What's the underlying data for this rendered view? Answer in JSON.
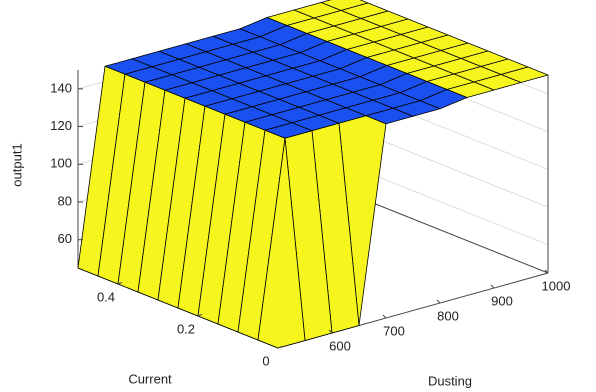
{
  "chart_data": {
    "type": "surface",
    "xlabel": "Current",
    "ylabel": "Dusting",
    "zlabel": "output1",
    "x": [
      0,
      0.05,
      0.1,
      0.15,
      0.2,
      0.25,
      0.3,
      0.35,
      0.4,
      0.45,
      0.5
    ],
    "y": [
      500,
      550,
      600,
      650,
      700,
      750,
      800,
      850,
      900,
      950,
      1000
    ],
    "z": [
      [
        45,
        45,
        45,
        45,
        148,
        148,
        148,
        150,
        150,
        150,
        150
      ],
      [
        45,
        148,
        148,
        148,
        148,
        148,
        148,
        150,
        150,
        150,
        150
      ],
      [
        45,
        148,
        148,
        148,
        148,
        148,
        148,
        150,
        150,
        150,
        150
      ],
      [
        45,
        148,
        148,
        148,
        148,
        148,
        148,
        150,
        150,
        150,
        150
      ],
      [
        45,
        148,
        148,
        148,
        148,
        148,
        148,
        150,
        150,
        150,
        150
      ],
      [
        45,
        148,
        148,
        148,
        148,
        148,
        148,
        150,
        150,
        150,
        150
      ],
      [
        45,
        148,
        148,
        148,
        148,
        148,
        148,
        150,
        150,
        150,
        150
      ],
      [
        45,
        148,
        148,
        148,
        148,
        148,
        148,
        150,
        150,
        150,
        150
      ],
      [
        45,
        148,
        148,
        148,
        148,
        148,
        148,
        150,
        150,
        150,
        150
      ],
      [
        45,
        148,
        148,
        148,
        148,
        148,
        148,
        150,
        150,
        150,
        150
      ],
      [
        45,
        148,
        148,
        148,
        148,
        148,
        148,
        150,
        150,
        150,
        150
      ]
    ],
    "colors": [
      "#1a50f0",
      "#f6f61e"
    ],
    "xlim": [
      0,
      0.5
    ],
    "ylim": [
      500,
      1000
    ],
    "zlim": [
      45,
      150
    ],
    "xticks": [
      0,
      0.2,
      0.4
    ],
    "yticks": [
      600,
      700,
      800,
      900,
      1000
    ],
    "zticks": [
      60,
      80,
      100,
      120,
      140
    ]
  }
}
